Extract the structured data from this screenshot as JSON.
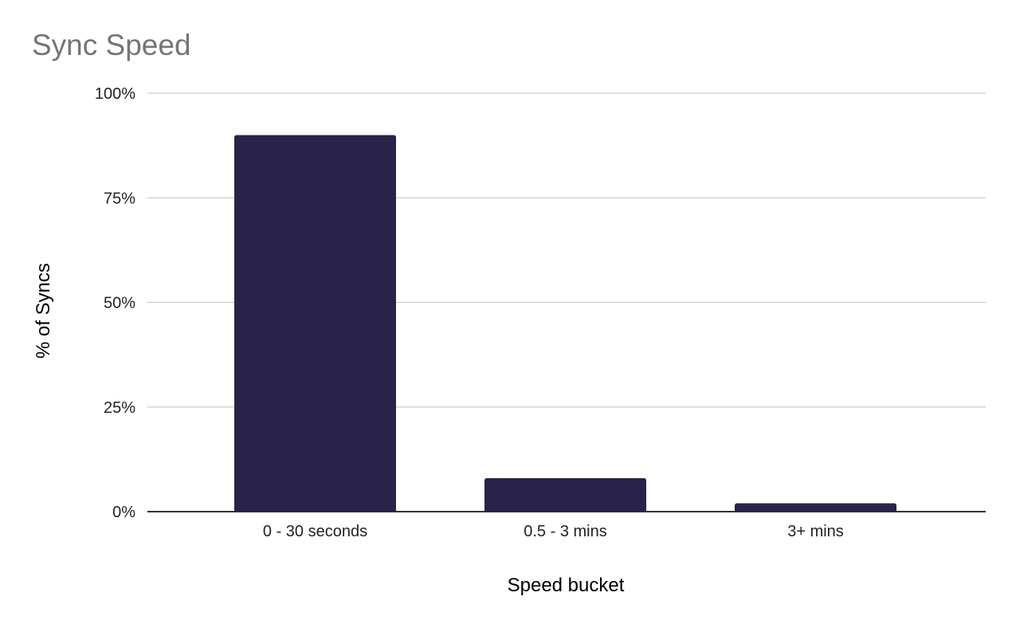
{
  "chart_data": {
    "type": "bar",
    "title": "Sync Speed",
    "xlabel": "Speed bucket",
    "ylabel": "% of Syncs",
    "categories": [
      "0 - 30 seconds",
      "0.5 - 3 mins",
      "3+ mins"
    ],
    "values": [
      90,
      8,
      2
    ],
    "ylim": [
      0,
      100
    ],
    "yticks": [
      0,
      25,
      50,
      75,
      100
    ],
    "ytick_labels": [
      "0%",
      "25%",
      "50%",
      "75%",
      "100%"
    ],
    "grid": true,
    "legend": "none",
    "colors": {
      "bar": "#29234a",
      "grid": "#cccccc",
      "axis": "#333333",
      "title": "#757575"
    }
  }
}
